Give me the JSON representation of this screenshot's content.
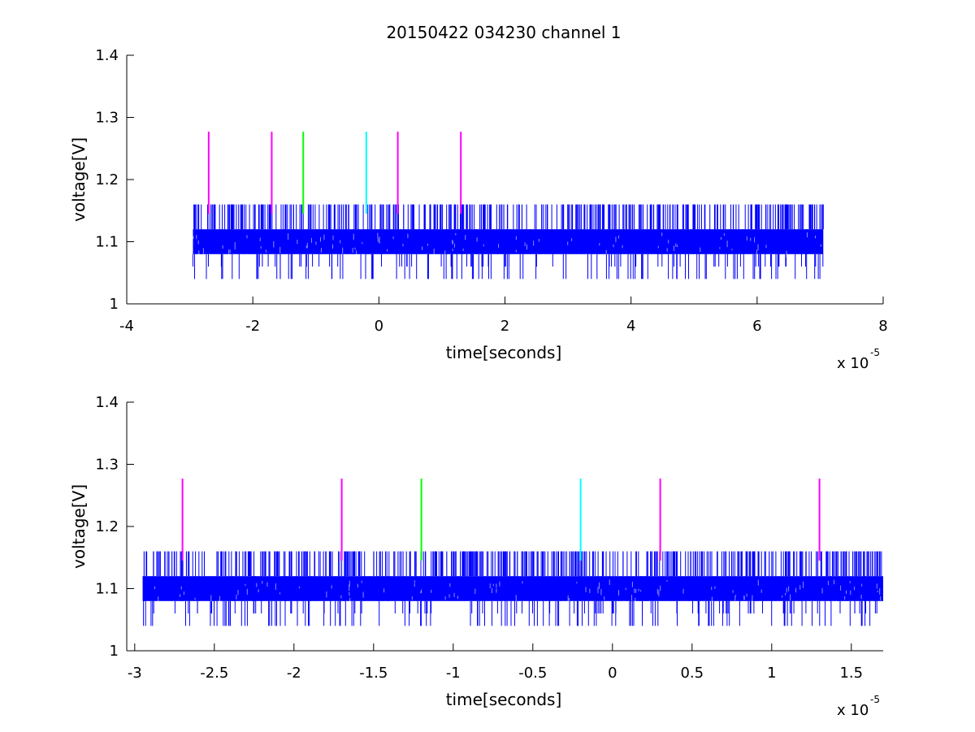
{
  "figure": {
    "title": "20150422 034230 channel 1"
  },
  "chart_data": [
    {
      "type": "line",
      "title": "20150422 034230 channel 1",
      "xlabel": "time[seconds]",
      "ylabel": "voltage[V]",
      "x_multiplier": "x 10",
      "x_multiplier_exp": "-5",
      "xlim": [
        -4,
        8
      ],
      "ylim": [
        1,
        1.4
      ],
      "xticks": [
        -4,
        -2,
        0,
        2,
        4,
        6,
        8
      ],
      "yticks": [
        1,
        1.1,
        1.2,
        1.3,
        1.4
      ],
      "xtick_labels": [
        "-4",
        "-2",
        "0",
        "2",
        "4",
        "6",
        "8"
      ],
      "ytick_labels": [
        "1",
        "1.1",
        "1.2",
        "1.3",
        "1.4"
      ],
      "grid": false,
      "series": [
        {
          "color": "#0000ff",
          "x_range": [
            -2.95,
            7.05
          ],
          "levels": [
            1.04,
            1.08,
            1.1,
            1.12,
            1.16
          ],
          "base_band": [
            1.08,
            1.12
          ]
        }
      ],
      "markers": [
        {
          "x": -2.7,
          "y_range": [
            1.145,
            1.277
          ],
          "color": "#ff00ff"
        },
        {
          "x": -1.7,
          "y_range": [
            1.145,
            1.277
          ],
          "color": "#ff00ff"
        },
        {
          "x": -1.2,
          "y_range": [
            1.145,
            1.277
          ],
          "color": "#00ff00"
        },
        {
          "x": -0.2,
          "y_range": [
            1.145,
            1.277
          ],
          "color": "#00ffff"
        },
        {
          "x": 0.3,
          "y_range": [
            1.145,
            1.277
          ],
          "color": "#ff00ff"
        },
        {
          "x": 1.3,
          "y_range": [
            1.145,
            1.277
          ],
          "color": "#ff00ff"
        }
      ]
    },
    {
      "type": "line",
      "title": "",
      "xlabel": "time[seconds]",
      "ylabel": "voltage[V]",
      "x_multiplier": "x 10",
      "x_multiplier_exp": "-5",
      "xlim": [
        -3.05,
        1.7
      ],
      "ylim": [
        1,
        1.4
      ],
      "xticks": [
        -3,
        -2.5,
        -2,
        -1.5,
        -1,
        -0.5,
        0,
        0.5,
        1,
        1.5
      ],
      "yticks": [
        1,
        1.1,
        1.2,
        1.3,
        1.4
      ],
      "xtick_labels": [
        "-3",
        "-2.5",
        "-2",
        "-1.5",
        "-1",
        "-0.5",
        "0",
        "0.5",
        "1",
        "1.5"
      ],
      "ytick_labels": [
        "1",
        "1.1",
        "1.2",
        "1.3",
        "1.4"
      ],
      "grid": false,
      "series": [
        {
          "color": "#0000ff",
          "x_range": [
            -2.95,
            1.7
          ],
          "levels": [
            1.04,
            1.08,
            1.1,
            1.12,
            1.16
          ],
          "base_band": [
            1.08,
            1.12
          ]
        }
      ],
      "markers": [
        {
          "x": -2.7,
          "y_range": [
            1.145,
            1.277
          ],
          "color": "#ff00ff"
        },
        {
          "x": -1.7,
          "y_range": [
            1.145,
            1.277
          ],
          "color": "#ff00ff"
        },
        {
          "x": -1.2,
          "y_range": [
            1.145,
            1.277
          ],
          "color": "#00ff00"
        },
        {
          "x": -0.2,
          "y_range": [
            1.145,
            1.277
          ],
          "color": "#00ffff"
        },
        {
          "x": 0.3,
          "y_range": [
            1.145,
            1.277
          ],
          "color": "#ff00ff"
        },
        {
          "x": 1.3,
          "y_range": [
            1.145,
            1.277
          ],
          "color": "#ff00ff"
        }
      ]
    }
  ]
}
